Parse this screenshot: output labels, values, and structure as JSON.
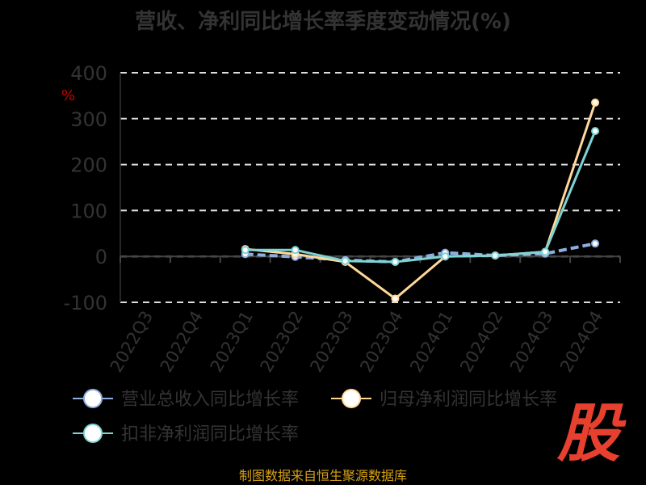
{
  "title": "营收、净利同比增长率季度变动情况(%)",
  "source": "制图数据来自恒生聚源数据库",
  "logo_text": "股",
  "chart_data": {
    "type": "line",
    "ylabel": "%",
    "ylim": [
      -100,
      400
    ],
    "yticks": [
      -100,
      0,
      100,
      200,
      300,
      400
    ],
    "grid": true,
    "legend_position": "bottom",
    "categories": [
      "2022Q3",
      "2022Q4",
      "2023Q1",
      "2023Q2",
      "2023Q3",
      "2023Q4",
      "2024Q1",
      "2024Q2",
      "2024Q3",
      "2024Q4"
    ],
    "series": [
      {
        "name": "营业总收入同比增长率",
        "color": "#8eaee0",
        "dashed": true,
        "values": [
          null,
          null,
          5,
          -1,
          -8,
          -12,
          8,
          2,
          6,
          28
        ]
      },
      {
        "name": "归母净利润同比增长率",
        "color": "#ffd89a",
        "dashed": false,
        "values": [
          null,
          null,
          16,
          5,
          -12,
          -92,
          0,
          2,
          10,
          335
        ]
      },
      {
        "name": "扣非净利润同比增长率",
        "color": "#7ed3d4",
        "dashed": false,
        "values": [
          null,
          null,
          14,
          14,
          -10,
          -12,
          0,
          2,
          10,
          273
        ]
      }
    ]
  }
}
